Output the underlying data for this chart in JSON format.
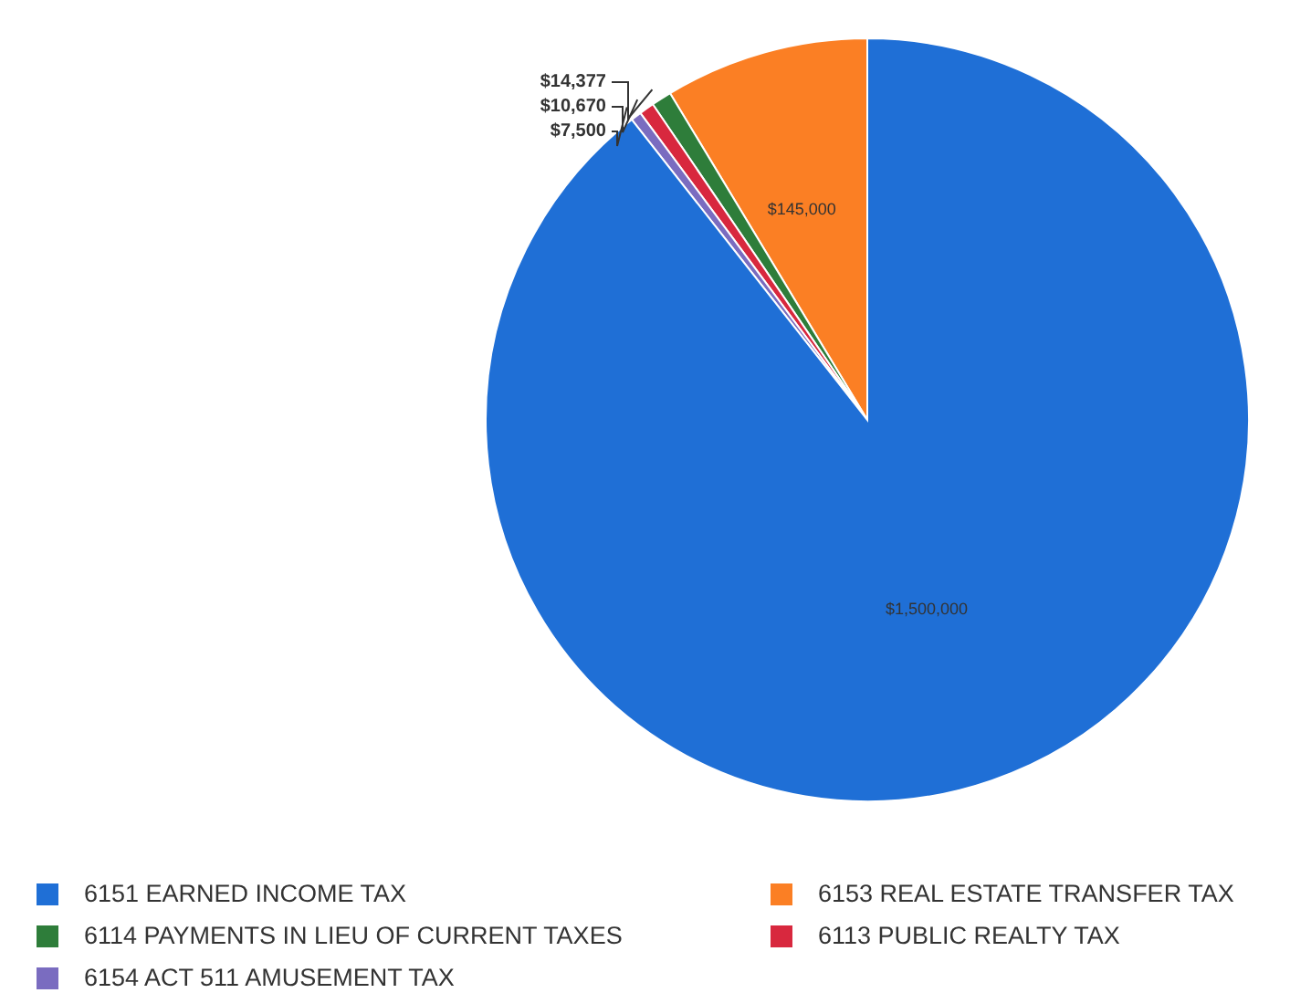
{
  "chart_data": {
    "type": "pie",
    "categories": [
      "6151 EARNED INCOME TAX",
      "6153 REAL ESTATE TRANSFER TAX",
      "6114 PAYMENTS IN LIEU OF CURRENT TAXES",
      "6113 PUBLIC REALTY TAX",
      "6154 ACT 511 AMUSEMENT TAX"
    ],
    "values": [
      1500000,
      145000,
      14377,
      10670,
      7500
    ],
    "colors": [
      "#1f6fd6",
      "#fb7f24",
      "#2e7d3a",
      "#d8283e",
      "#7a6cc0"
    ],
    "value_labels": [
      "$1,500,000",
      "$145,000",
      "$14,377",
      "$10,670",
      "$7,500"
    ],
    "legend": "bottom"
  }
}
